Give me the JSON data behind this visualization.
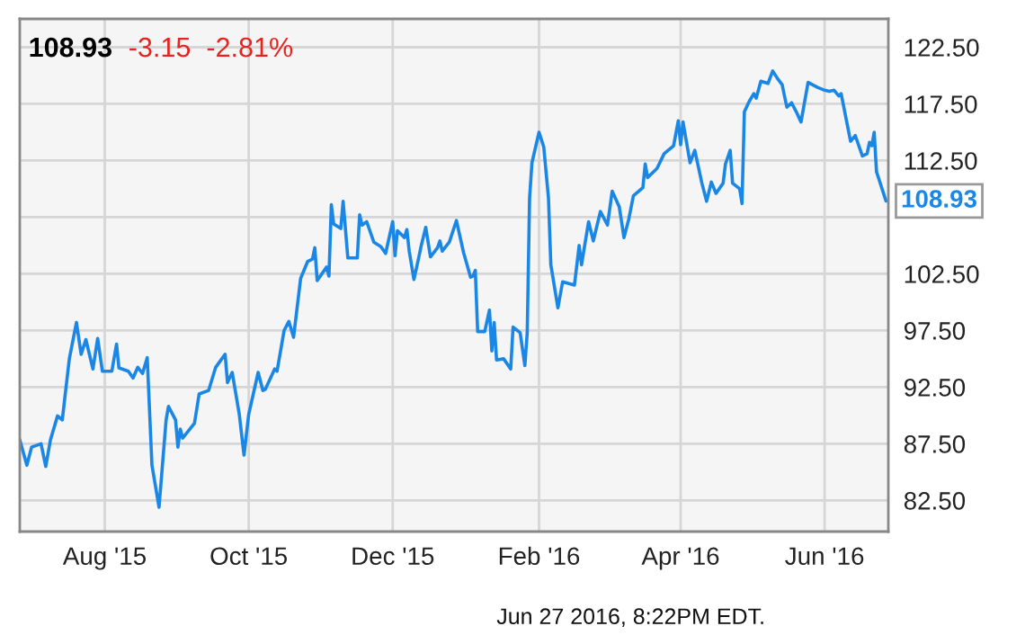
{
  "chart_data": {
    "type": "line",
    "title": "108.93",
    "subtitle": "-3.15  -2.81%",
    "x": [
      "2015-06-26",
      "2015-06-29",
      "2015-07-01",
      "2015-07-05",
      "2015-07-07",
      "2015-07-09",
      "2015-07-12",
      "2015-07-14",
      "2015-07-17",
      "2015-07-20",
      "2015-07-22",
      "2015-07-24",
      "2015-07-27",
      "2015-07-29",
      "2015-07-31",
      "2015-08-04",
      "2015-08-06",
      "2015-08-07",
      "2015-08-11",
      "2015-08-13",
      "2015-08-15",
      "2015-08-17",
      "2015-08-19",
      "2015-08-21",
      "2015-08-24",
      "2015-08-27",
      "2015-08-28",
      "2015-08-31",
      "2015-09-01",
      "2015-09-02",
      "2015-09-03",
      "2015-09-08",
      "2015-09-10",
      "2015-09-14",
      "2015-09-17",
      "2015-09-21",
      "2015-09-22",
      "2015-09-24",
      "2015-09-27",
      "2015-09-29",
      "2015-10-01",
      "2015-10-05",
      "2015-10-07",
      "2015-10-08",
      "2015-10-12",
      "2015-10-13",
      "2015-10-16",
      "2015-10-18",
      "2015-10-20",
      "2015-10-23",
      "2015-10-26",
      "2015-10-28",
      "2015-10-29",
      "2015-10-30",
      "2015-11-03",
      "2015-11-04",
      "2015-11-05",
      "2015-11-06",
      "2015-11-09",
      "2015-11-10",
      "2015-11-12",
      "2015-11-16",
      "2015-11-17",
      "2015-11-18",
      "2015-11-20",
      "2015-11-23",
      "2015-11-26",
      "2015-11-28",
      "2015-12-01",
      "2015-12-02",
      "2015-12-03",
      "2015-12-06",
      "2015-12-07",
      "2015-12-08",
      "2015-12-10",
      "2015-12-12",
      "2015-12-13",
      "2015-12-15",
      "2015-12-17",
      "2015-12-20",
      "2015-12-21",
      "2015-12-22",
      "2015-12-25",
      "2015-12-28",
      "2015-12-31",
      "2016-01-03",
      "2016-01-04",
      "2016-01-05",
      "2016-01-06",
      "2016-01-09",
      "2016-01-11",
      "2016-01-12",
      "2016-01-13",
      "2016-01-14",
      "2016-01-17",
      "2016-01-20",
      "2016-01-21",
      "2016-01-24",
      "2016-01-26",
      "2016-01-27",
      "2016-01-28",
      "2016-01-29",
      "2016-02-01",
      "2016-02-03",
      "2016-02-05",
      "2016-02-06",
      "2016-02-09",
      "2016-02-11",
      "2016-02-16",
      "2016-02-18",
      "2016-02-19",
      "2016-02-22",
      "2016-02-24",
      "2016-02-27",
      "2016-03-01",
      "2016-03-03",
      "2016-03-06",
      "2016-03-08",
      "2016-03-10",
      "2016-03-12",
      "2016-03-16",
      "2016-03-17",
      "2016-03-18",
      "2016-03-22",
      "2016-03-25",
      "2016-03-29",
      "2016-03-31",
      "2016-04-01",
      "2016-04-02",
      "2016-04-05",
      "2016-04-07",
      "2016-04-10",
      "2016-04-12",
      "2016-04-14",
      "2016-04-16",
      "2016-04-19",
      "2016-04-20",
      "2016-04-22",
      "2016-04-23",
      "2016-04-26",
      "2016-04-27",
      "2016-04-28",
      "2016-04-30",
      "2016-05-02",
      "2016-05-03",
      "2016-05-05",
      "2016-05-08",
      "2016-05-10",
      "2016-05-12",
      "2016-05-14",
      "2016-05-16",
      "2016-05-18",
      "2016-05-20",
      "2016-05-22",
      "2016-05-25",
      "2016-05-29",
      "2016-06-01",
      "2016-06-03",
      "2016-06-05",
      "2016-06-07",
      "2016-06-08",
      "2016-06-10",
      "2016-06-12",
      "2016-06-14",
      "2016-06-17",
      "2016-06-19",
      "2016-06-20",
      "2016-06-21",
      "2016-06-22",
      "2016-06-23",
      "2016-06-27"
    ],
    "series": [
      {
        "color": "#1a87e6",
        "values": [
          87.85,
          85.6,
          87.2,
          87.5,
          85.5,
          87.85,
          89.96,
          89.6,
          95.0,
          98.2,
          95.4,
          96.7,
          94.1,
          96.8,
          93.9,
          93.9,
          96.3,
          94.2,
          93.9,
          93.3,
          94.25,
          93.7,
          95.1,
          85.6,
          81.9,
          89.6,
          90.8,
          89.6,
          87.2,
          88.8,
          88.0,
          89.3,
          91.9,
          92.2,
          94.25,
          95.4,
          92.9,
          93.8,
          90.1,
          86.5,
          90.1,
          93.8,
          92.2,
          92.3,
          94.1,
          93.9,
          97.5,
          98.3,
          96.9,
          102.1,
          103.6,
          103.8,
          104.8,
          101.9,
          103.1,
          102.3,
          108.6,
          106.9,
          106.5,
          108.9,
          103.9,
          103.9,
          107.7,
          106.8,
          107.1,
          105.3,
          104.9,
          104.3,
          107.1,
          104.1,
          106.3,
          105.7,
          106.4,
          104.5,
          102.0,
          103.9,
          104.9,
          106.6,
          104.0,
          104.8,
          105.4,
          104.5,
          105.3,
          107.2,
          104.4,
          102.2,
          102.3,
          102.8,
          97.4,
          97.4,
          99.3,
          95.7,
          98.2,
          94.9,
          95.0,
          94.1,
          97.8,
          97.3,
          94.4,
          97.3,
          109.2,
          112.3,
          115.0,
          113.7,
          109.2,
          103.3,
          99.5,
          101.8,
          101.5,
          105.0,
          103.3,
          107.1,
          105.4,
          108.0,
          106.8,
          109.8,
          108.4,
          105.7,
          107.3,
          109.4,
          110.1,
          112.2,
          111.0,
          111.8,
          113.1,
          113.8,
          116.0,
          113.9,
          115.9,
          112.3,
          113.4,
          110.5,
          108.9,
          110.6,
          109.6,
          110.5,
          112.2,
          113.4,
          110.5,
          110.0,
          108.7,
          116.8,
          117.7,
          118.4,
          118.0,
          119.5,
          119.3,
          120.4,
          119.75,
          119.2,
          117.2,
          117.6,
          116.8,
          115.9,
          119.4,
          118.96,
          118.7,
          118.6,
          118.7,
          118.2,
          118.4,
          116.3,
          114.2,
          114.7,
          112.9,
          113.1,
          114.1,
          113.8,
          115.0,
          111.5,
          108.93
        ]
      }
    ],
    "xlim": [
      "2015-06-26",
      "2016-06-28"
    ],
    "xticks": [
      {
        "value": "2015-08-01",
        "label": "Aug '15"
      },
      {
        "value": "2015-10-01",
        "label": "Oct '15"
      },
      {
        "value": "2015-12-01",
        "label": "Dec '15"
      },
      {
        "value": "2016-02-01",
        "label": "Feb '16"
      },
      {
        "value": "2016-04-01",
        "label": "Apr '16"
      },
      {
        "value": "2016-06-01",
        "label": "Jun '16"
      }
    ],
    "ylim": [
      79.75,
      125
    ],
    "yticks": [
      {
        "value": 82.5,
        "label": "82.50"
      },
      {
        "value": 87.5,
        "label": "87.50"
      },
      {
        "value": 92.5,
        "label": "92.50"
      },
      {
        "value": 97.5,
        "label": "97.50"
      },
      {
        "value": 102.5,
        "label": "102.50"
      },
      {
        "value": 107.5,
        "label": null
      },
      {
        "value": 112.5,
        "label": "112.50"
      },
      {
        "value": 117.5,
        "label": "117.50"
      },
      {
        "value": 122.5,
        "label": "122.50"
      }
    ],
    "grid": true,
    "legend": false,
    "annotations": [
      {
        "text": "108.93",
        "x": "2016-06-27",
        "y": 108.93
      },
      "Jun 27 2016, 8:22PM EDT."
    ]
  }
}
